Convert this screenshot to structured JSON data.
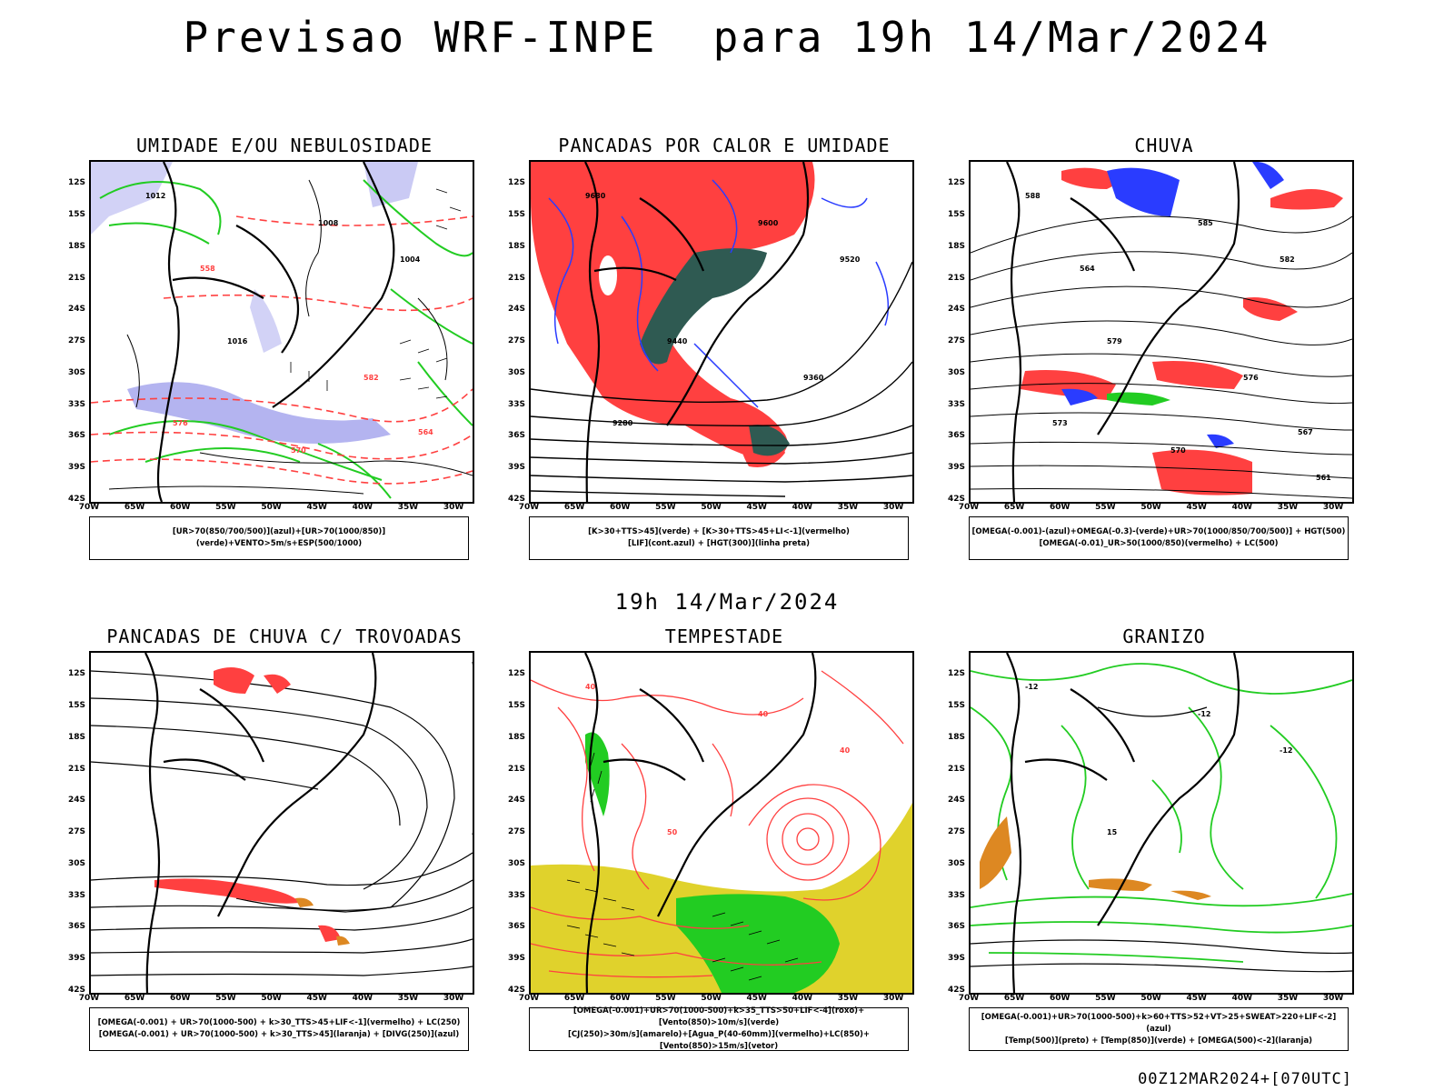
{
  "title": "Previsao WRF-INPE  para 19h 14/Mar/2024",
  "mid_title": "19h 14/Mar/2024",
  "footer": "00Z12MAR2024+[070UTC]",
  "axes": {
    "y_ticks": [
      "12S",
      "15S",
      "18S",
      "21S",
      "24S",
      "27S",
      "30S",
      "33S",
      "36S",
      "39S",
      "42S"
    ],
    "x_ticks": [
      "70W",
      "65W",
      "60W",
      "55W",
      "50W",
      "45W",
      "40W",
      "35W",
      "30W"
    ]
  },
  "panels": [
    {
      "title": "UMIDADE E/OU NEBULOSIDADE",
      "legend": [
        "[UR>70(850/700/500)](azul)+[UR>70(1000/850)](verde)+VENTO>5m/s+ESP(500/1000)"
      ],
      "contour_labels": [
        "1012",
        "1008",
        "1004",
        "1016",
        "582",
        "576",
        "570",
        "564",
        "558"
      ]
    },
    {
      "title": "PANCADAS POR CALOR E UMIDADE",
      "legend": [
        "[K>30+TTS>45](verde) + [K>30+TTS>45+LI<-1](vermelho)",
        "[LIF](cont.azul) + [HGT(300)](linha preta)"
      ],
      "contour_labels": [
        "9680",
        "9600",
        "9520",
        "9440",
        "9360",
        "9280"
      ]
    },
    {
      "title": "CHUVA",
      "legend": [
        "[OMEGA(-0.001)-(azul)+OMEGA(-0.3)-(verde)+UR>70(1000/850/700/500)] + HGT(500)",
        "[OMEGA(-0.01)_UR>50(1000/850)(vermelho) + LC(500)"
      ],
      "contour_labels": [
        "588",
        "585",
        "582",
        "579",
        "576",
        "573",
        "570",
        "567",
        "564",
        "561"
      ]
    },
    {
      "title": "PANCADAS DE CHUVA C/ TROVOADAS",
      "legend": [
        "[OMEGA(-0.001) + UR>70(1000-500) + k>30_TTS>45+LIF<-1](vermelho) + LC(250)",
        "[OMEGA(-0.001) + UR>70(1000-500) + k>30_TTS>45](laranja) + [DIVG(250)](azul)"
      ],
      "contour_labels": []
    },
    {
      "title": "TEMPESTADE",
      "legend": [
        "[OMEGA(-0.001)+UR>70(1000-500)+k>35_TTS>50+LIF<-4](roxo)+[Vento(850)>10m/s](verde)",
        "[CJ(250)>30m/s](amarelo)+[Agua_P(40-60mm)](vermelho)+LC(850)+[Vento(850)>15m/s](vetor)"
      ],
      "contour_labels": [
        "40",
        "40",
        "40",
        "50"
      ]
    },
    {
      "title": "GRANIZO",
      "legend": [
        "[OMEGA(-0.001)+UR>70(1000-500)+k>60+TTS>52+VT>25+SWEAT>220+LIF<-2](azul)",
        "[Temp(500)](preto) + [Temp(850)](verde) + [OMEGA(500)<-2](laranja)"
      ],
      "contour_labels": [
        "-12",
        "-12",
        "-12",
        "15"
      ]
    }
  ],
  "colors": {
    "red": "#ff4040",
    "green": "#22cc22",
    "blue": "#2a3cff",
    "lavender": "#b4b4f0",
    "darkteal": "#2f5a52",
    "yellow": "#e0d22c",
    "orange": "#dd8822"
  }
}
